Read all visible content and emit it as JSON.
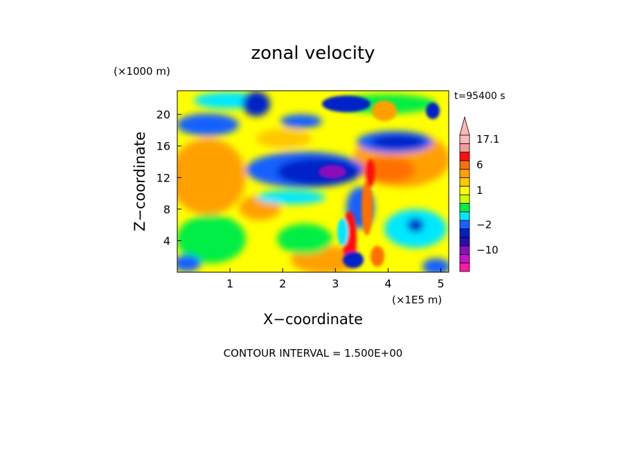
{
  "chart_data": {
    "type": "heatmap",
    "title": "zonal velocity",
    "xlabel": "X−coordinate",
    "ylabel": "Z−coordinate",
    "x_scale_label": "(×1E5 m)",
    "y_scale_label": "(×1000 m)",
    "xlim": [
      0,
      5.15
    ],
    "ylim": [
      0,
      23
    ],
    "xticks": [
      1,
      2,
      3,
      4,
      5
    ],
    "yticks": [
      4,
      8,
      12,
      16,
      20
    ],
    "time_label": "t=95400 s",
    "contour_interval_text": "CONTOUR INTERVAL = 1.500E+00",
    "colorbar": {
      "levels": [
        {
          "label": "",
          "color": "#ff1aa3"
        },
        {
          "label": "",
          "color": "#c614c6"
        },
        {
          "label": "−10",
          "color": "#8a0fbb"
        },
        {
          "label": "",
          "color": "#2b0ea8"
        },
        {
          "label": "",
          "color": "#0020c8"
        },
        {
          "label": "−2",
          "color": "#1860ff"
        },
        {
          "label": "",
          "color": "#00e8ff"
        },
        {
          "label": "",
          "color": "#00ee44"
        },
        {
          "label": "",
          "color": "#ccff00"
        },
        {
          "label": "1",
          "color": "#ffff00"
        },
        {
          "label": "",
          "color": "#ffc800"
        },
        {
          "label": "",
          "color": "#ffa000"
        },
        {
          "label": "6",
          "color": "#ff7000"
        },
        {
          "label": "",
          "color": "#ff1010"
        },
        {
          "label": "",
          "color": "#f59a9a"
        },
        {
          "label": "17.1",
          "color": "#ffb8b8"
        }
      ]
    }
  }
}
